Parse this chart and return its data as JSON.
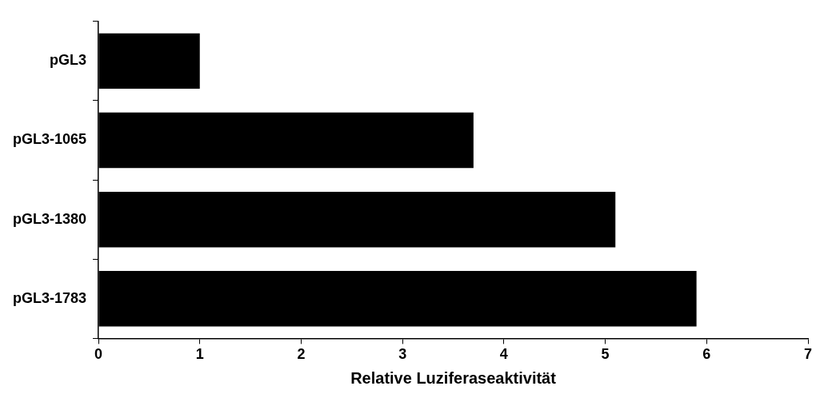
{
  "chart_data": {
    "type": "bar",
    "orientation": "horizontal",
    "xlabel": "Relative Luziferaseaktivität",
    "categories": [
      "pGL3",
      "pGL3-1065",
      "pGL3-1380",
      "pGL3-1783"
    ],
    "values": [
      1,
      3.7,
      5.1,
      5.9
    ],
    "color": "#000000",
    "xlim": [
      0,
      7
    ],
    "xticks": [
      0,
      1,
      2,
      3,
      4,
      5,
      6,
      7
    ],
    "grid": false,
    "legend": false
  }
}
